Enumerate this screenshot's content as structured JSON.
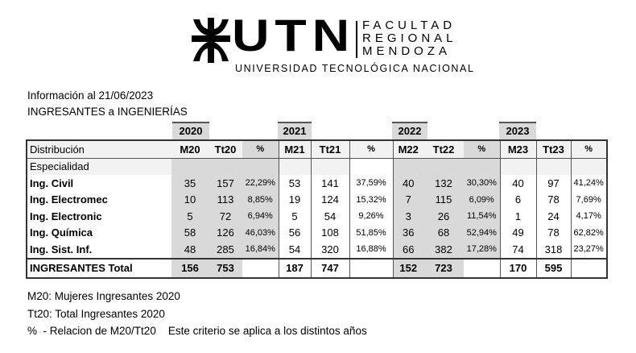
{
  "logo": {
    "mark": "UTN",
    "faculty_lines": [
      "FACULTAD",
      "REGIONAL",
      "MENDOZA"
    ],
    "university": "UNIVERSIDAD TECNOLÓGICA NACIONAL"
  },
  "info_date": "Información al 21/06/2023",
  "title": "INGRESANTES a INGENIERÍAS",
  "years": [
    "2020",
    "2021",
    "2022",
    "2023"
  ],
  "table": {
    "header_label": "Distribución",
    "subheader_label": "Especialidad",
    "columns": [
      "M20",
      "Tt20",
      "%",
      "M21",
      "Tt21",
      "%",
      "M22",
      "Tt22",
      "%",
      "M23",
      "Tt23",
      "%"
    ],
    "rows": [
      {
        "label": "Ing. Civil",
        "values": [
          "35",
          "157",
          "22,29%",
          "53",
          "141",
          "37,59%",
          "40",
          "132",
          "30,30%",
          "40",
          "97",
          "41,24%"
        ]
      },
      {
        "label": "Ing. Electromec",
        "values": [
          "10",
          "113",
          "8,85%",
          "19",
          "124",
          "15,32%",
          "7",
          "115",
          "6,09%",
          "6",
          "78",
          "7,69%"
        ]
      },
      {
        "label": "Ing. Electronic",
        "values": [
          "5",
          "72",
          "6,94%",
          "5",
          "54",
          "9,26%",
          "3",
          "26",
          "11,54%",
          "1",
          "24",
          "4,17%"
        ]
      },
      {
        "label": "Ing. Química",
        "values": [
          "58",
          "126",
          "46,03%",
          "56",
          "108",
          "51,85%",
          "36",
          "68",
          "52,94%",
          "49",
          "78",
          "62,82%"
        ]
      },
      {
        "label": "Ing. Sist. Inf.",
        "values": [
          "48",
          "285",
          "16,84%",
          "54",
          "320",
          "16,88%",
          "66",
          "382",
          "17,28%",
          "74",
          "318",
          "23,27%"
        ]
      }
    ],
    "total": {
      "label": "INGRESANTES Total",
      "values": [
        "156",
        "753",
        "",
        "187",
        "747",
        "",
        "152",
        "723",
        "",
        "170",
        "595",
        ""
      ]
    }
  },
  "notes": [
    "M20: Mujeres Ingresantes 2020",
    "Tt20: Total Ingresantes 2020",
    "%  - Relacion de M20/Tt20    Este criterio se aplica a los distintos años"
  ]
}
